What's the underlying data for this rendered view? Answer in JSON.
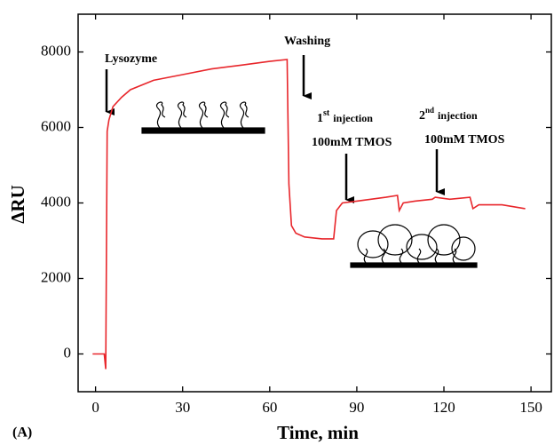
{
  "chart_data": {
    "type": "line",
    "x_label": "Time, min",
    "y_label": "ΔRU",
    "panel_label": "(A)",
    "xlim": [
      -6,
      157
    ],
    "xticks": [
      0,
      30,
      60,
      90,
      120,
      150
    ],
    "ylim": [
      -1000,
      9000
    ],
    "yticks": [
      0,
      2000,
      4000,
      6000,
      8000
    ],
    "series": [
      {
        "color": "#e8262b",
        "x": [
          -1,
          3,
          3.5,
          4,
          4.6,
          6,
          9,
          12,
          20,
          30,
          40,
          50,
          60,
          66,
          66.6,
          67.5,
          69,
          72,
          78,
          82,
          83,
          85,
          90,
          100,
          104,
          104.6,
          106,
          110,
          116,
          117,
          122,
          129,
          130,
          132,
          140,
          148
        ],
        "values": [
          0,
          0,
          -400,
          5900,
          6200,
          6550,
          6800,
          7000,
          7250,
          7400,
          7550,
          7650,
          7750,
          7800,
          4500,
          3400,
          3200,
          3100,
          3050,
          3050,
          3800,
          4000,
          4050,
          4150,
          4200,
          3800,
          4000,
          4050,
          4100,
          4150,
          4100,
          4150,
          3850,
          3950,
          3950,
          3850
        ]
      }
    ],
    "annotations": [
      {
        "text": "Lysozyme"
      },
      {
        "text": "Washing"
      },
      {
        "ordinal": "1",
        "suffix": "st",
        "text": "injection",
        "detail": "100mM TMOS"
      },
      {
        "ordinal": "2",
        "suffix": "nd",
        "text": "injection",
        "detail": "100mM TMOS"
      }
    ]
  }
}
